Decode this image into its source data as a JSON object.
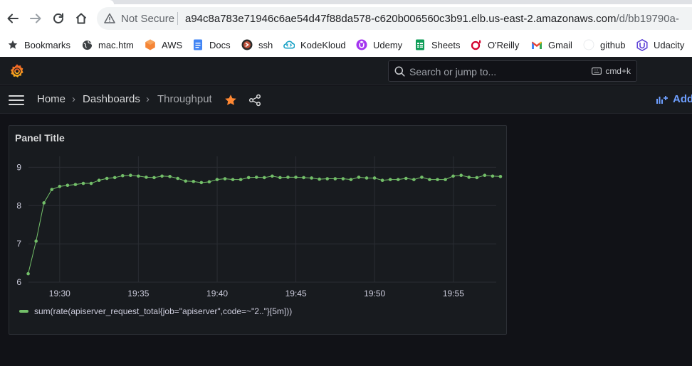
{
  "browser": {
    "not_secure": "Not Secure",
    "url_host": "a94c8a783e71946c6ae54d47f88da578-c620b006560c3b91.elb.us-east-2.amazonaws.com",
    "url_path": "/d/bb19790a-",
    "bookmarks": [
      {
        "label": "Bookmarks",
        "icon": "star-icon"
      },
      {
        "label": "mac.htm",
        "icon": "globe-icon"
      },
      {
        "label": "AWS",
        "icon": "aws-icon"
      },
      {
        "label": "Docs",
        "icon": "docs-icon"
      },
      {
        "label": "ssh",
        "icon": "ssh-icon"
      },
      {
        "label": "KodeKloud",
        "icon": "kodekloud-icon"
      },
      {
        "label": "Udemy",
        "icon": "udemy-icon"
      },
      {
        "label": "Sheets",
        "icon": "sheets-icon"
      },
      {
        "label": "O'Reilly",
        "icon": "oreilly-icon"
      },
      {
        "label": "Gmail",
        "icon": "gmail-icon"
      },
      {
        "label": "github",
        "icon": "github-icon"
      },
      {
        "label": "Udacity",
        "icon": "udacity-icon"
      }
    ]
  },
  "grafana": {
    "search_placeholder": "Search or jump to...",
    "search_shortcut": "cmd+k",
    "breadcrumbs": [
      "Home",
      "Dashboards",
      "Throughput"
    ],
    "add_label": "Add",
    "accent": "#6e9fff"
  },
  "panel": {
    "title": "Panel Title",
    "legend": "sum(rate(apiserver_request_total{job=\"apiserver\",code=~\"2..\"}[5m]))"
  },
  "chart_data": {
    "type": "line",
    "title": "Panel Title",
    "xlabel": "",
    "ylabel": "",
    "ylim": [
      6,
      9.1
    ],
    "xlim": [
      19.467,
      19.962
    ],
    "y_ticks": [
      6,
      7,
      8,
      9
    ],
    "x_ticks": [
      {
        "value": 19.5,
        "label": "19:30"
      },
      {
        "value": 19.5833,
        "label": "19:35"
      },
      {
        "value": 19.6667,
        "label": "19:40"
      },
      {
        "value": 19.75,
        "label": "19:45"
      },
      {
        "value": 19.8333,
        "label": "19:50"
      },
      {
        "value": 19.9167,
        "label": "19:55"
      }
    ],
    "grid": true,
    "legend_position": "bottom-left",
    "color": "#73bf69",
    "series": [
      {
        "name": "sum(rate(apiserver_request_total{job=\"apiserver\",code=~\"2..\"}[5m]))",
        "start": 19.4667,
        "step": 0.00833,
        "values": [
          6.22,
          7.07,
          8.07,
          8.42,
          8.5,
          8.53,
          8.55,
          8.58,
          8.58,
          8.66,
          8.71,
          8.73,
          8.78,
          8.79,
          8.77,
          8.74,
          8.73,
          8.77,
          8.76,
          8.71,
          8.64,
          8.63,
          8.6,
          8.62,
          8.68,
          8.7,
          8.68,
          8.68,
          8.73,
          8.74,
          8.73,
          8.77,
          8.73,
          8.74,
          8.74,
          8.73,
          8.72,
          8.69,
          8.7,
          8.7,
          8.7,
          8.68,
          8.74,
          8.72,
          8.72,
          8.66,
          8.68,
          8.68,
          8.71,
          8.68,
          8.74,
          8.68,
          8.68,
          8.68,
          8.77,
          8.79,
          8.74,
          8.73,
          8.79,
          8.77,
          8.76
        ]
      }
    ]
  }
}
